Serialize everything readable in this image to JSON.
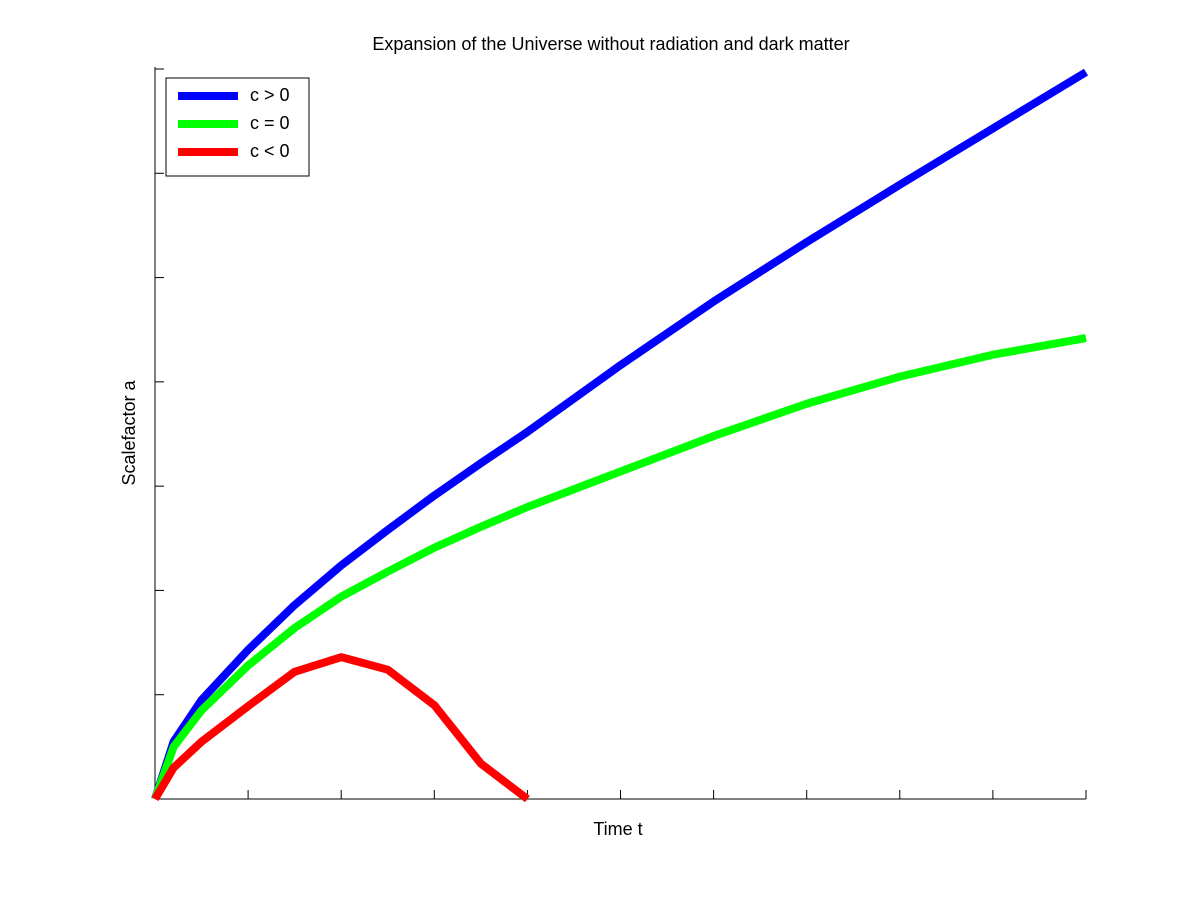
{
  "chart_data": {
    "type": "line",
    "title": "Expansion of the Universe without radiation and dark matter",
    "xlabel": "Time t",
    "ylabel": "Scalefactor a",
    "x": [
      0,
      0.2,
      0.5,
      1,
      1.5,
      2,
      2.5,
      3,
      3.5,
      4,
      5,
      6,
      7,
      8,
      9,
      10
    ],
    "series": [
      {
        "name": "c > 0",
        "color": "#0000ff",
        "values": [
          0,
          0.55,
          0.95,
          1.43,
          1.86,
          2.24,
          2.58,
          2.91,
          3.22,
          3.52,
          4.16,
          4.77,
          5.34,
          5.89,
          6.43,
          6.97
        ]
      },
      {
        "name": "c = 0",
        "color": "#00ff00",
        "values": [
          0,
          0.5,
          0.85,
          1.28,
          1.64,
          1.94,
          2.18,
          2.41,
          2.61,
          2.8,
          3.14,
          3.48,
          3.79,
          4.05,
          4.26,
          4.42
        ]
      },
      {
        "name": "c < 0",
        "color": "#ff0000",
        "values": [
          0,
          0.3,
          0.55,
          0.89,
          1.22,
          1.36,
          1.24,
          0.9,
          0.34,
          0,
          null,
          null,
          null,
          null,
          null,
          null
        ]
      }
    ],
    "xlim": [
      0,
      10
    ],
    "ylim": [
      0,
      7
    ],
    "xticks": [
      0,
      1,
      2,
      3,
      4,
      5,
      6,
      7,
      8,
      9,
      10
    ],
    "yticks": [
      0,
      1,
      2,
      3,
      4,
      5,
      6,
      7
    ],
    "grid": false,
    "legend": "upper left"
  }
}
